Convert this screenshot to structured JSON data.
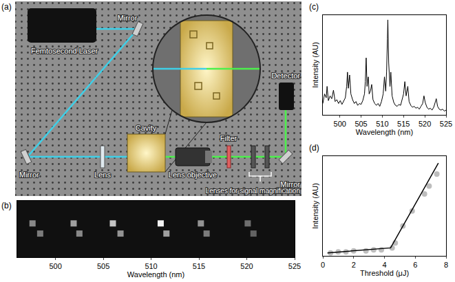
{
  "diagram": {
    "panel": "(a)",
    "labels": {
      "laser": "Femtosecond Laser",
      "mirror_top": "Mirror",
      "mirror_left": "Mirror",
      "mirror_right": "Mirror",
      "lens": "Lens",
      "cavity": "Cavity",
      "objective": "Lens objective",
      "filter": "Filter",
      "detector": "Detector",
      "magnification": "Lenses for signal magnification"
    }
  },
  "chart_data": [
    {
      "type": "scatter",
      "panel": "(b)",
      "x_label": "Wavelength (nm)",
      "x": [
        497.6,
        498.4,
        501.9,
        502.5,
        506.0,
        506.8,
        511.0,
        511.6,
        515.2,
        515.8,
        520.1,
        520.7
      ],
      "y": [
        0.6,
        0.42,
        0.6,
        0.42,
        0.6,
        0.42,
        0.6,
        0.42,
        0.6,
        0.42,
        0.6,
        0.42
      ],
      "values": [
        0.5,
        0.45,
        0.6,
        0.5,
        0.75,
        0.55,
        0.95,
        0.6,
        0.55,
        0.45,
        0.4,
        0.35
      ],
      "xlim": [
        496,
        525
      ],
      "xticks": [
        500,
        505,
        510,
        515,
        520,
        525
      ],
      "ylim": [
        0,
        1
      ],
      "tick_labels": "x",
      "color": "#ffffff"
    },
    {
      "type": "line",
      "panel": "(c)",
      "x_label": "Wavelength (nm)",
      "y_label": "Intensity (AU)",
      "x": [
        496.0,
        496.4,
        496.8,
        497.0,
        497.3,
        497.7,
        498.1,
        498.5,
        498.9,
        499.3,
        499.7,
        500.1,
        500.5,
        500.9,
        501.3,
        501.6,
        501.8,
        502.0,
        502.3,
        502.6,
        503.0,
        503.4,
        503.8,
        504.2,
        504.6,
        505.0,
        505.4,
        505.8,
        506.0,
        506.2,
        506.4,
        506.7,
        506.9,
        507.2,
        507.5,
        507.8,
        508.2,
        508.6,
        509.0,
        509.4,
        509.8,
        510.2,
        510.5,
        510.8,
        511.0,
        511.2,
        511.3,
        511.5,
        511.8,
        512.0,
        512.3,
        512.7,
        513.1,
        513.5,
        513.9,
        514.3,
        514.7,
        515.0,
        515.3,
        515.6,
        516.0,
        516.3,
        516.7,
        517.1,
        517.5,
        517.9,
        518.3,
        518.7,
        519.1,
        519.5,
        519.8,
        520.1,
        520.5,
        520.9,
        521.3,
        521.7,
        522.1,
        522.4,
        522.7,
        523.0,
        523.4,
        523.8,
        524.2,
        524.6,
        525.0
      ],
      "values": [
        0.12,
        0.22,
        0.18,
        0.3,
        0.15,
        0.2,
        0.17,
        0.26,
        0.14,
        0.16,
        0.12,
        0.15,
        0.11,
        0.14,
        0.18,
        0.3,
        0.45,
        0.28,
        0.42,
        0.22,
        0.16,
        0.12,
        0.14,
        0.1,
        0.12,
        0.11,
        0.15,
        0.22,
        0.35,
        0.6,
        0.3,
        0.4,
        0.22,
        0.25,
        0.32,
        0.16,
        0.12,
        0.1,
        0.12,
        0.09,
        0.14,
        0.22,
        0.4,
        0.25,
        0.45,
        0.8,
        1.0,
        0.55,
        0.3,
        0.45,
        0.2,
        0.13,
        0.1,
        0.09,
        0.11,
        0.1,
        0.16,
        0.22,
        0.35,
        0.2,
        0.3,
        0.14,
        0.1,
        0.08,
        0.09,
        0.07,
        0.08,
        0.06,
        0.09,
        0.12,
        0.2,
        0.13,
        0.08,
        0.06,
        0.07,
        0.05,
        0.08,
        0.12,
        0.17,
        0.09,
        0.06,
        0.05,
        0.06,
        0.04,
        0.05
      ],
      "xlim": [
        496,
        525
      ],
      "xticks": [
        500,
        505,
        510,
        515,
        520,
        525
      ],
      "ylim": [
        0,
        1.05
      ],
      "tick_labels": "x",
      "color": "#000000"
    },
    {
      "type": "scatter",
      "panel": "(d)",
      "x_label": "Threshold (μJ)",
      "y_label": "Intensity (AU)",
      "xlim": [
        0,
        8
      ],
      "xticks": [
        0,
        2,
        4,
        6,
        8
      ],
      "ylim": [
        0,
        1
      ],
      "tick_labels": "x",
      "series": [
        {
          "type": "scatter",
          "marker": "circle",
          "color": "#bdbdbd",
          "x": [
            0.5,
            1.0,
            1.5,
            2.0,
            2.8,
            3.3,
            3.8,
            4.5,
            4.7,
            5.2,
            5.8,
            6.6,
            6.9,
            7.4
          ],
          "values": [
            0.03,
            0.04,
            0.04,
            0.05,
            0.05,
            0.06,
            0.06,
            0.08,
            0.13,
            0.3,
            0.45,
            0.62,
            0.7,
            0.82
          ]
        },
        {
          "type": "line",
          "color": "#000000",
          "x": [
            0.3,
            4.4,
            7.5
          ],
          "values": [
            0.03,
            0.08,
            0.93
          ]
        }
      ]
    }
  ]
}
